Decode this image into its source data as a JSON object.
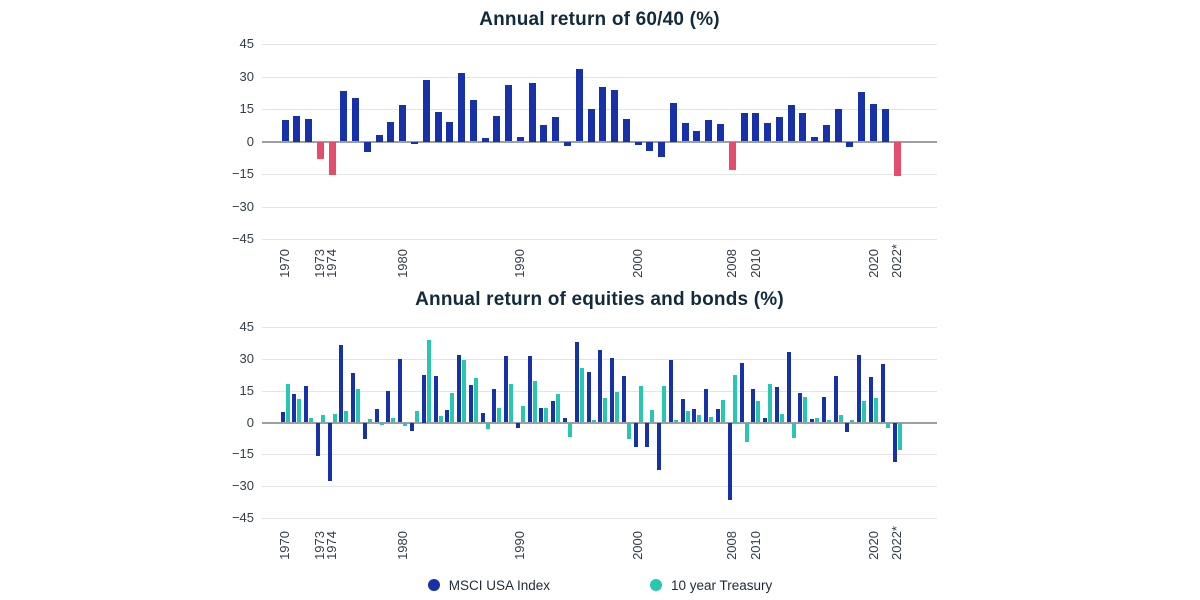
{
  "legend": {
    "items": [
      {
        "label": "MSCI USA Index",
        "color": "#1731a8"
      },
      {
        "label": "10 year Treasury",
        "color": "#28c7b2"
      }
    ]
  },
  "chart_data": [
    {
      "type": "bar",
      "title": "Annual return of 60/40 (%)",
      "ylabel": "",
      "xlabel": "",
      "ylim": [
        -45,
        45
      ],
      "grid": true,
      "y_ticks": [
        45,
        30,
        15,
        0,
        -15,
        -30,
        -45
      ],
      "x_ticks": [
        {
          "label": "1970",
          "year": 1970
        },
        {
          "label": "1973",
          "year": 1973
        },
        {
          "label": "1974",
          "year": 1974
        },
        {
          "label": "1980",
          "year": 1980
        },
        {
          "label": "1990",
          "year": 1990
        },
        {
          "label": "2000",
          "year": 2000
        },
        {
          "label": "2008",
          "year": 2008
        },
        {
          "label": "2010",
          "year": 2010
        },
        {
          "label": "2020",
          "year": 2020
        },
        {
          "label": "2022*",
          "year": 2022
        }
      ],
      "categories": [
        1970,
        1971,
        1972,
        1973,
        1974,
        1975,
        1976,
        1977,
        1978,
        1979,
        1980,
        1981,
        1982,
        1983,
        1984,
        1985,
        1986,
        1987,
        1988,
        1989,
        1990,
        1991,
        1992,
        1993,
        1994,
        1995,
        1996,
        1997,
        1998,
        1999,
        2000,
        2001,
        2002,
        2003,
        2004,
        2005,
        2006,
        2007,
        2008,
        2009,
        2010,
        2011,
        2012,
        2013,
        2014,
        2015,
        2016,
        2017,
        2018,
        2019,
        2020,
        2021,
        2022
      ],
      "values": [
        10,
        12,
        10.5,
        -8,
        -15.5,
        23.5,
        20,
        -5,
        3,
        9,
        17,
        -1,
        28.5,
        13.5,
        9,
        31.5,
        19,
        1.5,
        12,
        26,
        2,
        27,
        7.5,
        11.5,
        -2,
        33.5,
        15,
        25,
        24,
        10.5,
        -1.5,
        -4.5,
        -7,
        18,
        8.5,
        5,
        10,
        8,
        -13,
        13,
        13,
        8.5,
        11.5,
        17,
        13,
        2,
        7.5,
        15,
        -2.5,
        23,
        17.5,
        15,
        -16
      ],
      "bar_color": "#1731a8",
      "highlight_color": "#e44d6e",
      "highlight_years": [
        1973,
        1974,
        2008,
        2022
      ]
    },
    {
      "type": "bar",
      "title": "Annual return of equities and bonds (%)",
      "ylabel": "",
      "xlabel": "",
      "ylim": [
        -45,
        45
      ],
      "grid": true,
      "y_ticks": [
        45,
        30,
        15,
        0,
        -15,
        -30,
        -45
      ],
      "x_ticks": [
        {
          "label": "1970",
          "year": 1970
        },
        {
          "label": "1973",
          "year": 1973
        },
        {
          "label": "1974",
          "year": 1974
        },
        {
          "label": "1980",
          "year": 1980
        },
        {
          "label": "1990",
          "year": 1990
        },
        {
          "label": "2000",
          "year": 2000
        },
        {
          "label": "2008",
          "year": 2008
        },
        {
          "label": "2010",
          "year": 2010
        },
        {
          "label": "2020",
          "year": 2020
        },
        {
          "label": "2022*",
          "year": 2022
        }
      ],
      "categories": [
        1970,
        1971,
        1972,
        1973,
        1974,
        1975,
        1976,
        1977,
        1978,
        1979,
        1980,
        1981,
        1982,
        1983,
        1984,
        1985,
        1986,
        1987,
        1988,
        1989,
        1990,
        1991,
        1992,
        1993,
        1994,
        1995,
        1996,
        1997,
        1998,
        1999,
        2000,
        2001,
        2002,
        2003,
        2004,
        2005,
        2006,
        2007,
        2008,
        2009,
        2010,
        2011,
        2012,
        2013,
        2014,
        2015,
        2016,
        2017,
        2018,
        2019,
        2020,
        2021,
        2022
      ],
      "series": [
        {
          "name": "MSCI USA Index",
          "color": "#1731a8",
          "values": [
            5,
            13.5,
            17,
            -16,
            -27.5,
            36.5,
            23.5,
            -8,
            6.5,
            15,
            30,
            -4,
            22.5,
            22,
            6,
            32,
            17.5,
            4.5,
            16,
            31.5,
            -2.5,
            31.5,
            7,
            10,
            2,
            38,
            24,
            34,
            30.5,
            22,
            -11.5,
            -11.5,
            -22.5,
            29.5,
            11,
            6.5,
            16,
            6.5,
            -36.5,
            28,
            16,
            2,
            16.5,
            33,
            14,
            1.5,
            12,
            22,
            -4.5,
            32,
            21.5,
            27.5,
            -18.5
          ]
        },
        {
          "name": "10 year Treasury",
          "color": "#28c7b2",
          "values": [
            18,
            11,
            2,
            3.5,
            4,
            5.5,
            16,
            1.5,
            -1,
            2,
            -1.5,
            5.5,
            39,
            3,
            14,
            29.5,
            21,
            -3,
            7,
            18,
            8,
            19.5,
            7,
            13.5,
            -7,
            25.5,
            1,
            11.5,
            14.5,
            -8,
            17,
            6,
            17,
            1,
            5.5,
            3.5,
            2.5,
            10.5,
            22.5,
            -9,
            10,
            18,
            4,
            -7.5,
            12,
            2,
            1,
            3.5,
            1,
            10,
            11.5,
            -2.5,
            -13
          ]
        }
      ]
    }
  ]
}
